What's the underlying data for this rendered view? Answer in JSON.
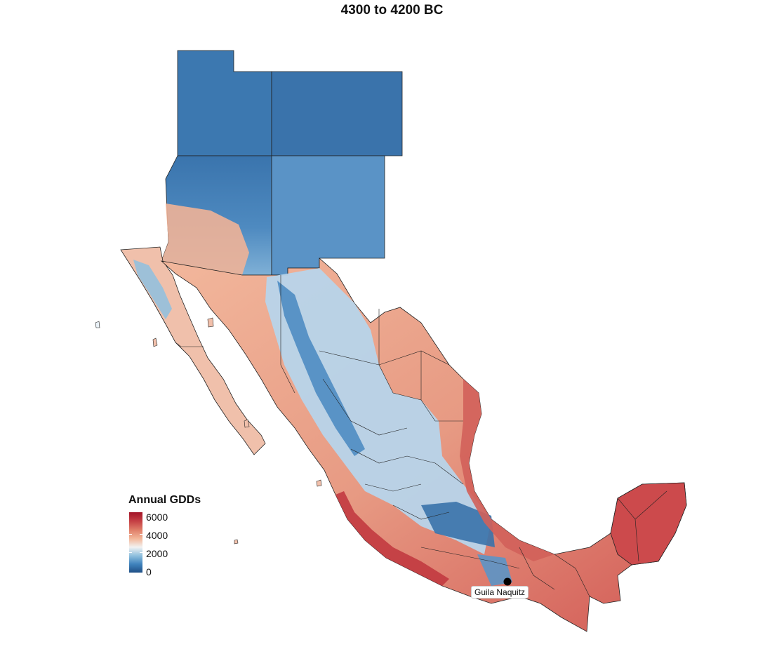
{
  "title": "4300 to 4200 BC",
  "legend": {
    "title": "Annual GDDs",
    "ticks": [
      "6000",
      "4000",
      "2000",
      "0"
    ]
  },
  "site": {
    "label": "Guila Naquitz"
  },
  "colors": {
    "low": "#1f4f86",
    "mid": "#f2f2f2",
    "high": "#a31428",
    "border": "#222222"
  }
}
